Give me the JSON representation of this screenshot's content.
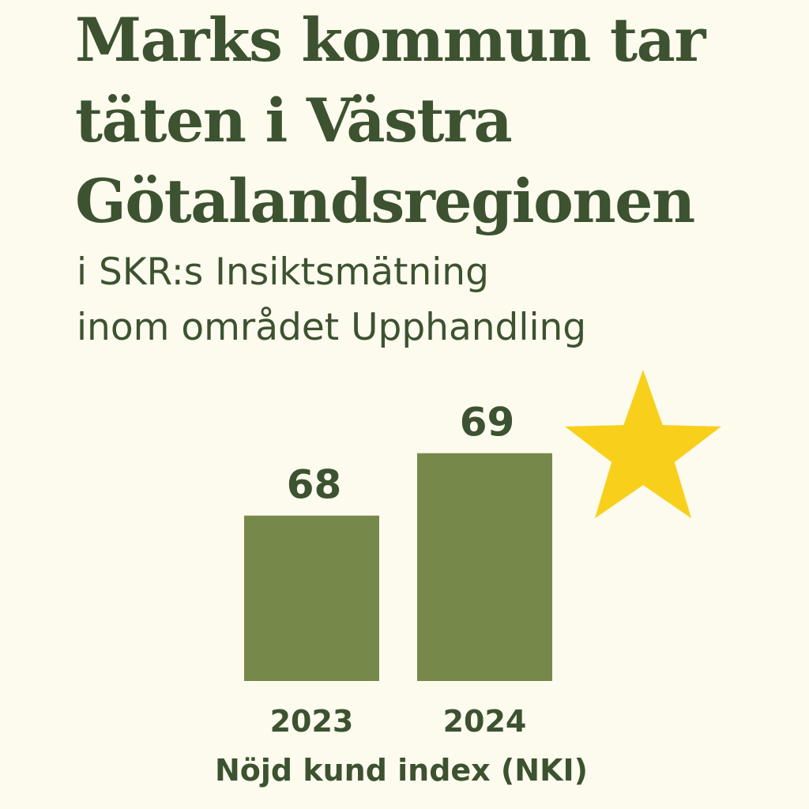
{
  "chart_data": {
    "type": "bar",
    "title": [
      "Marks kommun tar",
      "täten i Västra",
      "Götalandsregionen"
    ],
    "subtitle": [
      "i SKR:s Insiktsmätning",
      "inom området Upphandling"
    ],
    "categories": [
      "2023",
      "2024"
    ],
    "values": [
      68,
      69
    ],
    "xlabel": "Nöjd kund index (NKI)",
    "ylabel": "",
    "grid": false,
    "highlight": {
      "category": "2024",
      "icon": "star-icon",
      "color": "#f8d01c"
    },
    "colors": {
      "bar": "#76894a",
      "text": "#3c5230",
      "background": "#fdfbee"
    }
  }
}
